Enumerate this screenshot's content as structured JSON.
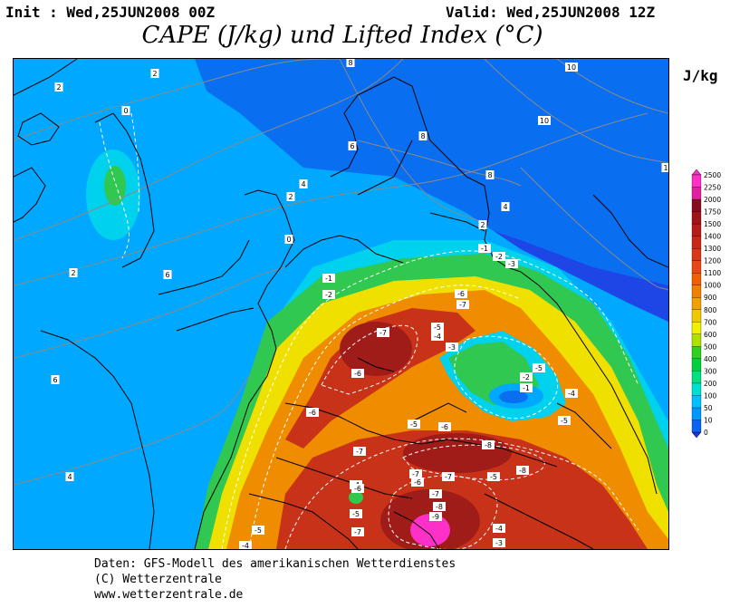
{
  "header": {
    "init": "Init : Wed,25JUN2008 00Z",
    "valid": "Valid: Wed,25JUN2008 12Z",
    "title": "CAPE (J/kg) und Lifted Index (°C)",
    "unit": "J/kg"
  },
  "legend": {
    "levels": [
      "0",
      "10",
      "50",
      "100",
      "200",
      "300",
      "400",
      "500",
      "600",
      "700",
      "800",
      "900",
      "1000",
      "1100",
      "1200",
      "1300",
      "1400",
      "1500",
      "1750",
      "2000",
      "2250",
      "2500"
    ],
    "colors": [
      "#1e32e6",
      "#0a64f0",
      "#0096ff",
      "#00c0ff",
      "#00e0d0",
      "#00e080",
      "#00d040",
      "#30d020",
      "#b0e000",
      "#f0f000",
      "#f0c800",
      "#f0a000",
      "#f08000",
      "#f06000",
      "#e84818",
      "#d83818",
      "#c82818",
      "#b81c18",
      "#a01418",
      "#880c20",
      "#e020a0",
      "#ff30c8"
    ]
  },
  "map": {
    "colors": {
      "deep_blue": "#1e46e6",
      "blue": "#0a6ef0",
      "light_blue": "#00a8ff",
      "cyan": "#00d2ee",
      "green": "#30c850",
      "yellow": "#f0e000",
      "orange": "#f08c00",
      "red": "#c83218",
      "dark_red": "#a01c18",
      "magenta": "#ff30c8"
    },
    "contour_labels": [
      {
        "text": "2"
      },
      {
        "text": "2"
      },
      {
        "text": "0"
      },
      {
        "text": "8"
      },
      {
        "text": "10"
      },
      {
        "text": "10"
      },
      {
        "text": "6"
      },
      {
        "text": "8"
      },
      {
        "text": "8"
      },
      {
        "text": "1"
      },
      {
        "text": "4"
      },
      {
        "text": "4"
      },
      {
        "text": "2"
      },
      {
        "text": "2"
      },
      {
        "text": "0"
      },
      {
        "text": "-1"
      },
      {
        "text": "-2"
      },
      {
        "text": "-3"
      },
      {
        "text": "6"
      },
      {
        "text": "2"
      },
      {
        "text": "-1"
      },
      {
        "text": "-2"
      },
      {
        "text": "-6"
      },
      {
        "text": "-7"
      },
      {
        "text": "-7"
      },
      {
        "text": "-5"
      },
      {
        "text": "-4"
      },
      {
        "text": "-3"
      },
      {
        "text": "-6"
      },
      {
        "text": "-2"
      },
      {
        "text": "-1"
      },
      {
        "text": "-4"
      },
      {
        "text": "-5"
      },
      {
        "text": "6"
      },
      {
        "text": "-6"
      },
      {
        "text": "-5"
      },
      {
        "text": "-6"
      },
      {
        "text": "-8"
      },
      {
        "text": "-8"
      },
      {
        "text": "-7"
      },
      {
        "text": "-7"
      },
      {
        "text": "-5"
      },
      {
        "text": "-6"
      },
      {
        "text": "4"
      },
      {
        "text": "-4"
      },
      {
        "text": "-6"
      },
      {
        "text": "-5"
      },
      {
        "text": "-5"
      },
      {
        "text": "-7"
      },
      {
        "text": "-7"
      },
      {
        "text": "-8"
      },
      {
        "text": "-9"
      },
      {
        "text": "-4"
      },
      {
        "text": "-3"
      },
      {
        "text": "-4"
      },
      {
        "text": "-5"
      },
      {
        "text": "-7"
      }
    ]
  },
  "footer": {
    "line1": "Daten: GFS-Modell des amerikanischen Wetterdienstes",
    "line2": "(C) Wetterzentrale",
    "line3": "www.wetterzentrale.de"
  }
}
